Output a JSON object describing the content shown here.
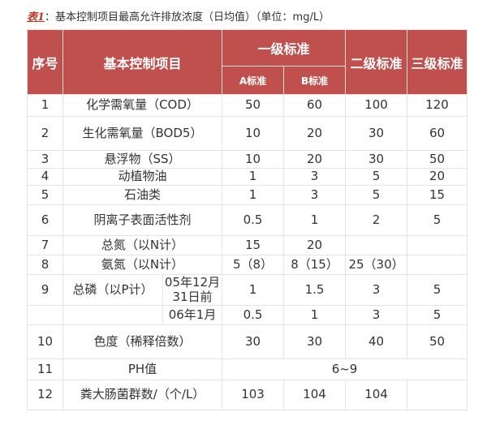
{
  "caption": {
    "tag": "表1",
    "text": "：基本控制项目最高允许排放浓度（日均值）（单位：mg/L）"
  },
  "header": {
    "no": "序号",
    "item": "基本控制项目",
    "grade1": "一级标准",
    "grade1a": "A标准",
    "grade1b": "B标准",
    "grade2": "二级标准",
    "grade3": "三级标准"
  },
  "colors": {
    "header_bg": "#c0504d",
    "caption_tag": "#c0392b"
  },
  "rows": [
    {
      "no": "1",
      "item": "化学需氧量（COD）",
      "a": "50",
      "b": "60",
      "g2": "100",
      "g3": "120"
    },
    {
      "no": "2",
      "item": "生化需氧量（BOD5）",
      "a": "10",
      "b": "20",
      "g2": "30",
      "g3": "60"
    },
    {
      "no": "3",
      "item": "悬浮物（SS）",
      "a": "10",
      "b": "20",
      "g2": "30",
      "g3": "50"
    },
    {
      "no": "4",
      "item": "动植物油",
      "a": "1",
      "b": "3",
      "g2": "5",
      "g3": "20"
    },
    {
      "no": "5",
      "item": "石油类",
      "a": "1",
      "b": "3",
      "g2": "5",
      "g3": "15"
    },
    {
      "no": "6",
      "item": "阴离子表面活性剂",
      "a": "0.5",
      "b": "1",
      "g2": "2",
      "g3": "5"
    },
    {
      "no": "7",
      "item": "总氮（以N计）",
      "a": "15",
      "b": "20",
      "g2": "",
      "g3": ""
    },
    {
      "no": "8",
      "item": "氨氮（以N计）",
      "a": "5（8）",
      "b": "8（15）",
      "g2": "25（30）",
      "g3": ""
    },
    {
      "no": "9",
      "item": "总磷（以P计）",
      "sub": "05年12月31日前",
      "a": "1",
      "b": "1.5",
      "g2": "3",
      "g3": "5"
    },
    {
      "no": "",
      "item": "",
      "sub": "06年1月",
      "a": "0.5",
      "b": "1",
      "g2": "3",
      "g3": "5"
    },
    {
      "no": "10",
      "item": "色度（稀释倍数）",
      "a": "30",
      "b": "30",
      "g2": "40",
      "g3": "50"
    },
    {
      "no": "11",
      "item": "PH值",
      "span": "6~9"
    },
    {
      "no": "12",
      "item": "粪大肠菌群数/（个/L）",
      "a": "103",
      "b": "104",
      "g2": "104",
      "g3": ""
    }
  ]
}
